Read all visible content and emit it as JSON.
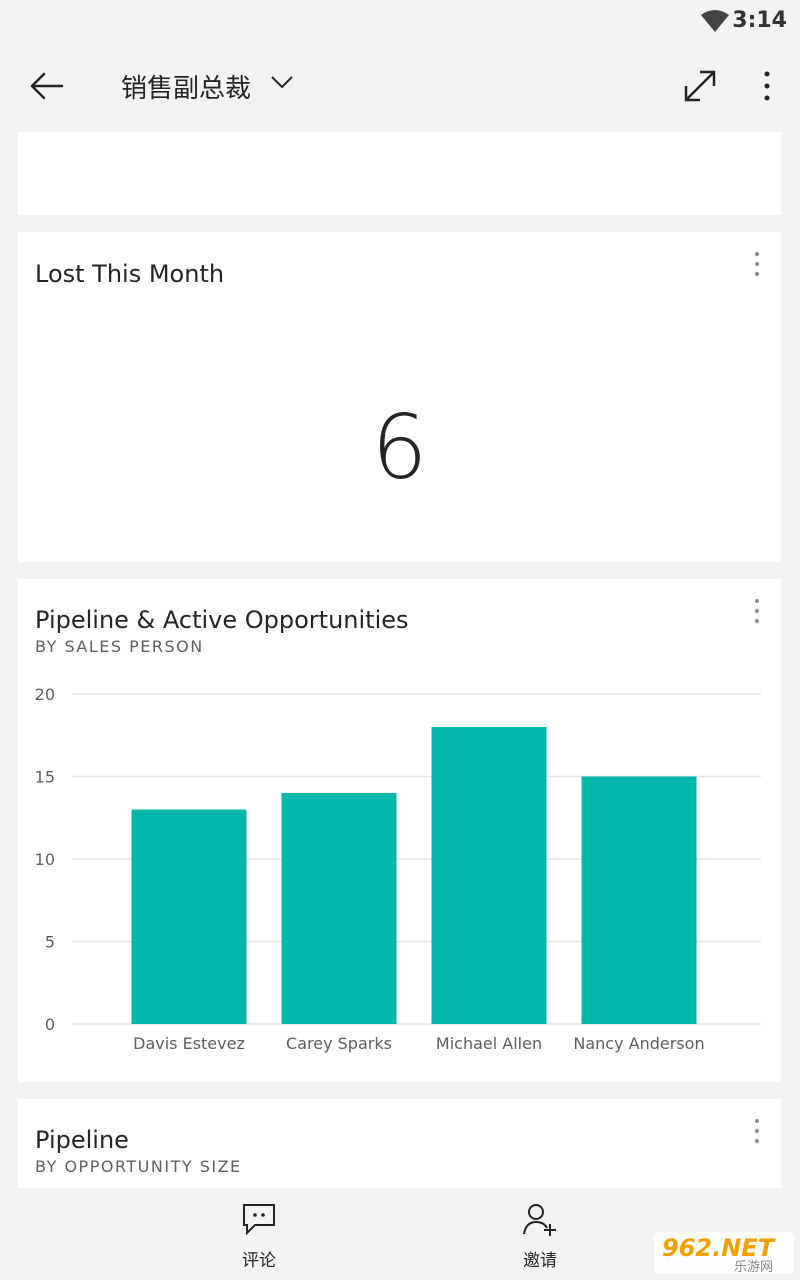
{
  "status": {
    "time": "3:14"
  },
  "header": {
    "title": "销售副总裁"
  },
  "cards": {
    "lost": {
      "title": "Lost This Month",
      "value": "6"
    },
    "pipeline_active": {
      "title": "Pipeline & Active Opportunities",
      "subtitle": "BY SALES PERSON"
    },
    "pipeline": {
      "title": "Pipeline",
      "subtitle": "BY OPPORTUNITY SIZE"
    }
  },
  "chart_data": {
    "type": "bar",
    "title": "Pipeline & Active Opportunities",
    "subtitle": "BY SALES PERSON",
    "categories": [
      "Davis Estevez",
      "Carey Sparks",
      "Michael Allen",
      "Nancy Anderson"
    ],
    "values": [
      13,
      14,
      18,
      15
    ],
    "yticks": [
      0,
      5,
      10,
      15,
      20
    ],
    "ylim": [
      0,
      20
    ],
    "grid": true,
    "bar_color": "#01b8aa"
  },
  "bottom_nav": {
    "comment": "评论",
    "invite": "邀请"
  },
  "watermark": {
    "brand": "962.NET",
    "sub": "乐游网"
  }
}
